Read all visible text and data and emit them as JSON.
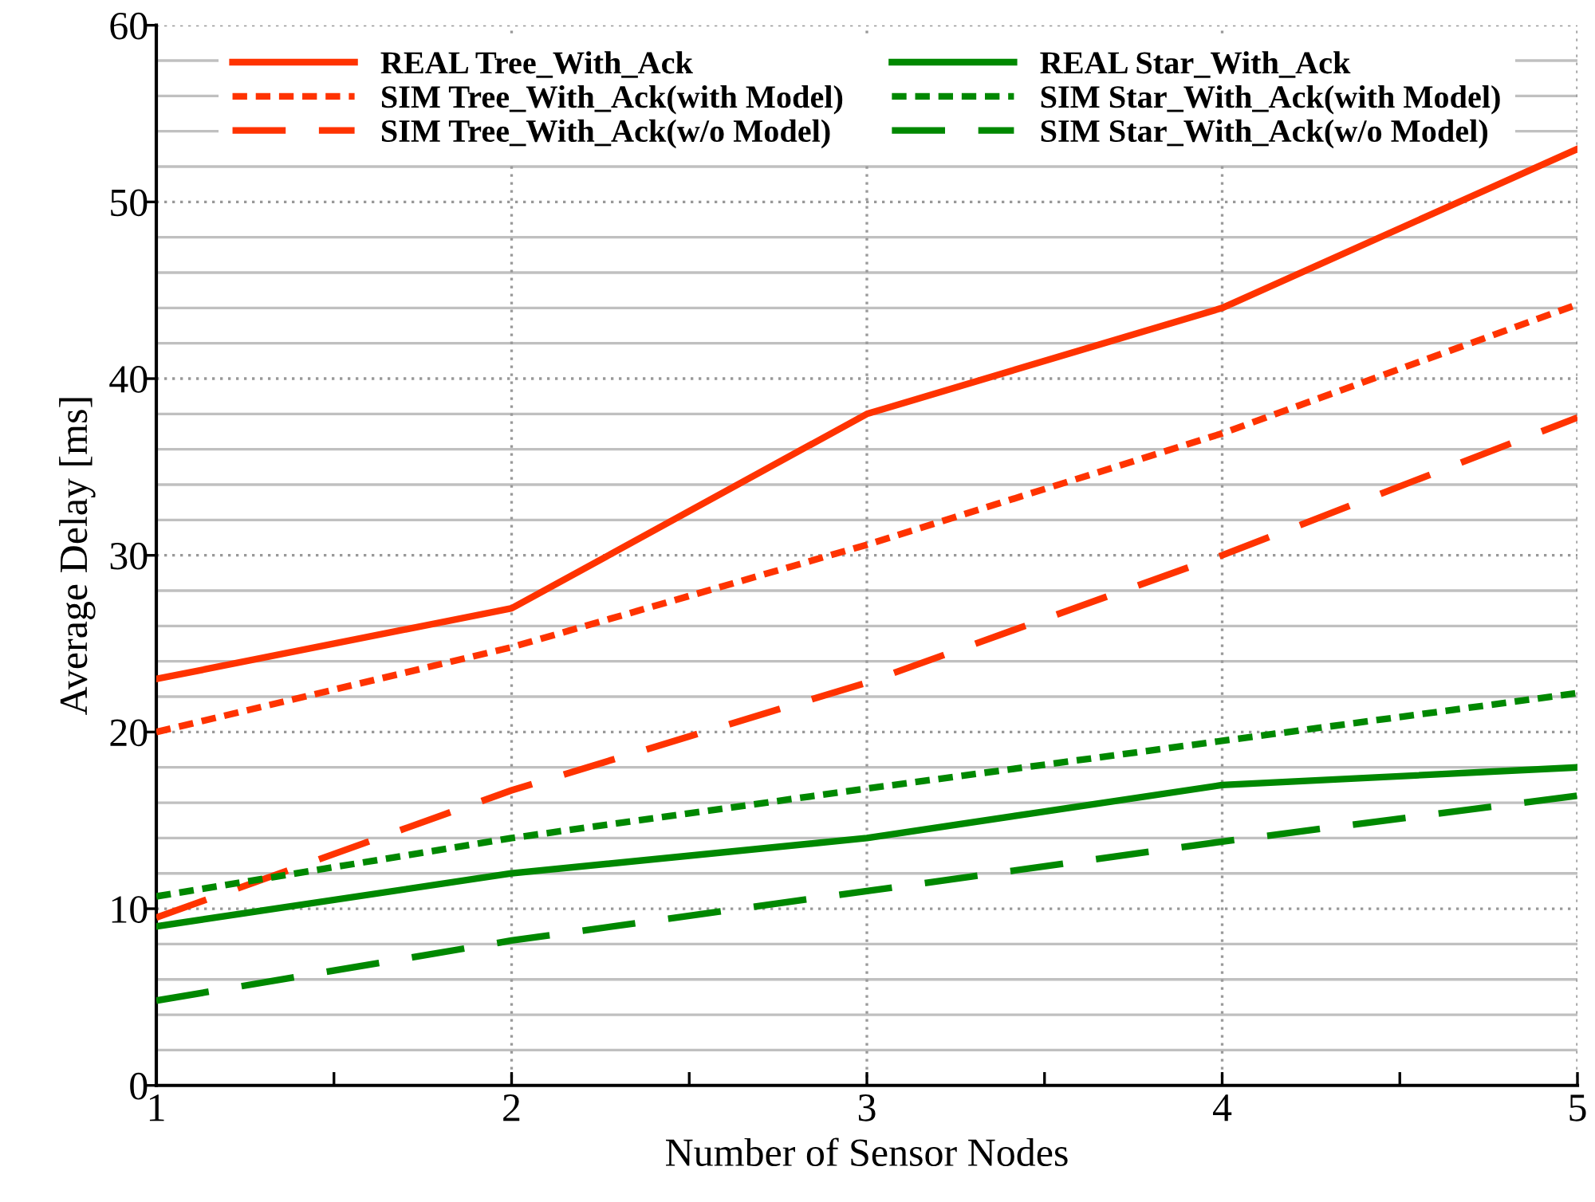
{
  "chart_data": {
    "type": "line",
    "xlabel": "Number of Sensor Nodes",
    "ylabel": "Average Delay [ms]",
    "x": [
      1,
      2,
      3,
      4,
      5
    ],
    "xlim": [
      1,
      5
    ],
    "xticks": [
      1,
      {
        "value": 1.5,
        "label": null
      },
      2,
      {
        "value": 2.5,
        "label": null
      },
      3,
      {
        "value": 3.5,
        "label": null
      },
      4,
      {
        "value": 4.5,
        "label": null
      },
      5
    ],
    "ylim": [
      0,
      60
    ],
    "yticks": [
      0,
      {
        "value": 2,
        "label": null
      },
      {
        "value": 4,
        "label": null
      },
      {
        "value": 6,
        "label": null
      },
      {
        "value": 8,
        "label": null
      },
      10,
      {
        "value": 12,
        "label": null
      },
      {
        "value": 14,
        "label": null
      },
      {
        "value": 16,
        "label": null
      },
      {
        "value": 18,
        "label": null
      },
      20,
      {
        "value": 22,
        "label": null
      },
      {
        "value": 24,
        "label": null
      },
      {
        "value": 26,
        "label": null
      },
      {
        "value": 28,
        "label": null
      },
      30,
      {
        "value": 32,
        "label": null
      },
      {
        "value": 34,
        "label": null
      },
      {
        "value": 36,
        "label": null
      },
      {
        "value": 38,
        "label": null
      },
      40,
      {
        "value": 42,
        "label": null
      },
      {
        "value": 44,
        "label": null
      },
      {
        "value": 46,
        "label": null
      },
      {
        "value": 48,
        "label": null
      },
      50,
      {
        "value": 52,
        "label": null
      },
      {
        "value": 54,
        "label": null
      },
      {
        "value": 56,
        "label": null
      },
      {
        "value": 58,
        "label": null
      },
      60
    ],
    "grid": true,
    "legend": "top",
    "marker": "none",
    "series": [
      {
        "name": "REAL Tree_With_Ack",
        "color": "#ff3300",
        "line_style": "solid",
        "values": [
          23,
          27,
          38,
          44,
          53
        ]
      },
      {
        "name": "SIM Tree_With_Ack(with Model)",
        "color": "#ff3300",
        "line_style": "dotted",
        "values": [
          20,
          24.8,
          30.6,
          36.9,
          44.2
        ]
      },
      {
        "name": "SIM Tree_With_Ack(w/o Model)",
        "color": "#ff3300",
        "line_style": "dashed",
        "values": [
          9.5,
          16.7,
          22.8,
          30,
          37.8
        ]
      },
      {
        "name": "REAL Star_With_Ack",
        "color": "#008800",
        "line_style": "solid",
        "values": [
          9,
          12,
          14,
          17,
          18
        ]
      },
      {
        "name": "SIM Star_With_Ack(with Model)",
        "color": "#008800",
        "line_style": "dotted",
        "values": [
          10.7,
          14,
          16.8,
          19.5,
          22.2
        ]
      },
      {
        "name": "SIM Star_With_Ack(w/o Model)",
        "color": "#008800",
        "line_style": "dashed",
        "values": [
          4.8,
          8.2,
          11,
          13.8,
          16.4
        ]
      }
    ]
  }
}
